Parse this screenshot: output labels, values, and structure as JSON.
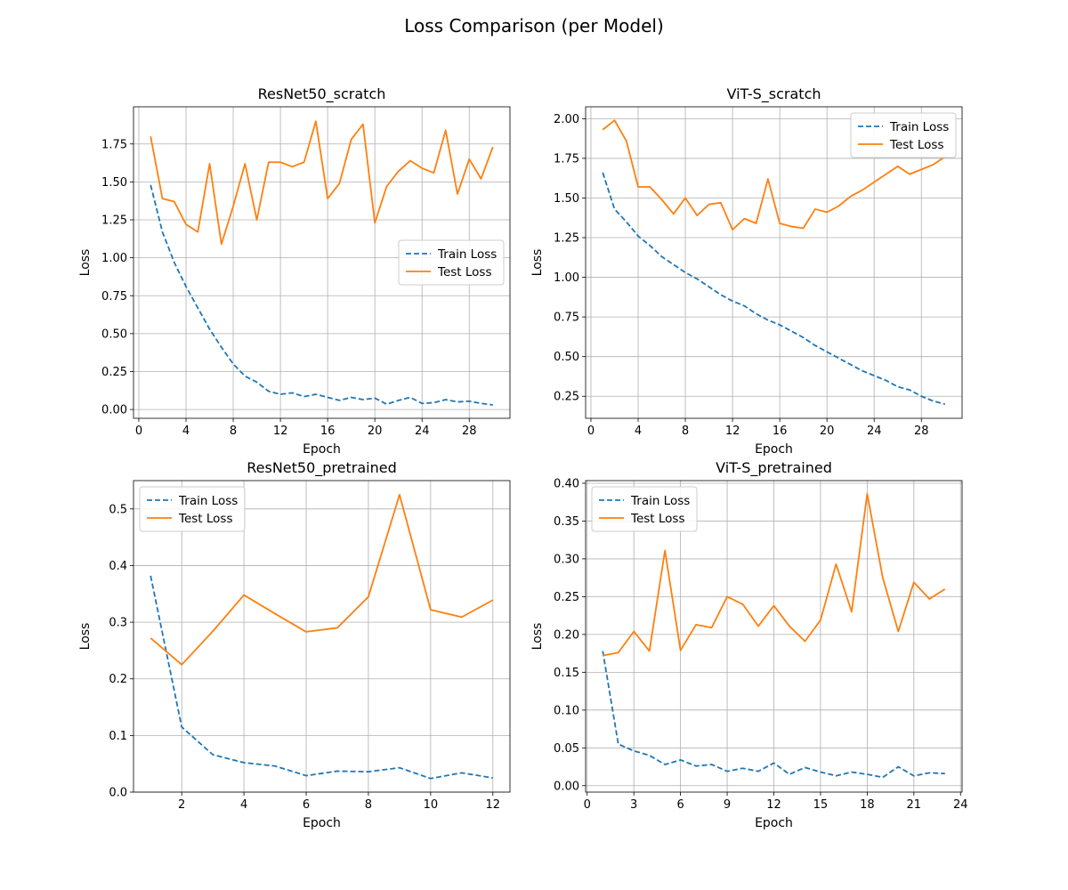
{
  "figure": {
    "title": "Loss Comparison (per Model)"
  },
  "colors": {
    "train": "#1f77b4",
    "test": "#ff7f0e",
    "grid": "#b0b0b0"
  },
  "chart_data": [
    {
      "type": "line",
      "title": "ResNet50_scratch",
      "xlabel": "Epoch",
      "ylabel": "Loss",
      "xlim": [
        -0.45,
        31.45
      ],
      "ylim": [
        -0.058,
        1.995
      ],
      "xticks": [
        0,
        4,
        8,
        12,
        16,
        20,
        24,
        28
      ],
      "yticks": [
        0.0,
        0.25,
        0.5,
        0.75,
        1.0,
        1.25,
        1.5,
        1.75
      ],
      "ytick_labels": [
        "0.00",
        "0.25",
        "0.50",
        "0.75",
        "1.00",
        "1.25",
        "1.50",
        "1.75"
      ],
      "grid": true,
      "legend": "center-right",
      "series": [
        {
          "name": "Train Loss",
          "style": "dashed",
          "x": [
            1,
            2,
            3,
            4,
            5,
            6,
            7,
            8,
            9,
            10,
            11,
            12,
            13,
            14,
            15,
            16,
            17,
            18,
            19,
            20,
            21,
            22,
            23,
            24,
            25,
            26,
            27,
            28,
            29,
            30
          ],
          "values": [
            1.48,
            1.17,
            0.97,
            0.81,
            0.67,
            0.53,
            0.41,
            0.3,
            0.22,
            0.18,
            0.12,
            0.1,
            0.11,
            0.085,
            0.1,
            0.08,
            0.06,
            0.08,
            0.065,
            0.075,
            0.035,
            0.06,
            0.08,
            0.04,
            0.045,
            0.065,
            0.05,
            0.055,
            0.04,
            0.03
          ]
        },
        {
          "name": "Test Loss",
          "style": "solid",
          "x": [
            1,
            2,
            3,
            4,
            5,
            6,
            7,
            8,
            9,
            10,
            11,
            12,
            13,
            14,
            15,
            16,
            17,
            18,
            19,
            20,
            21,
            22,
            23,
            24,
            25,
            26,
            27,
            28,
            29,
            30
          ],
          "values": [
            1.8,
            1.39,
            1.37,
            1.22,
            1.17,
            1.62,
            1.09,
            1.34,
            1.62,
            1.25,
            1.63,
            1.63,
            1.6,
            1.63,
            1.9,
            1.39,
            1.49,
            1.78,
            1.88,
            1.23,
            1.47,
            1.57,
            1.64,
            1.59,
            1.56,
            1.84,
            1.42,
            1.65,
            1.52,
            1.73
          ]
        }
      ]
    },
    {
      "type": "line",
      "title": "ViT-S_scratch",
      "xlabel": "Epoch",
      "ylabel": "Loss",
      "xlim": [
        -0.45,
        31.45
      ],
      "ylim": [
        0.111,
        2.075
      ],
      "xticks": [
        0,
        4,
        8,
        12,
        16,
        20,
        24,
        28
      ],
      "yticks": [
        0.25,
        0.5,
        0.75,
        1.0,
        1.25,
        1.5,
        1.75,
        2.0
      ],
      "ytick_labels": [
        "0.25",
        "0.50",
        "0.75",
        "1.00",
        "1.25",
        "1.50",
        "1.75",
        "2.00"
      ],
      "grid": true,
      "legend": "top-right",
      "series": [
        {
          "name": "Train Loss",
          "style": "dashed",
          "x": [
            1,
            2,
            3,
            4,
            5,
            6,
            7,
            8,
            9,
            10,
            11,
            12,
            13,
            14,
            15,
            16,
            17,
            18,
            19,
            20,
            21,
            22,
            23,
            24,
            25,
            26,
            27,
            28,
            29,
            30
          ],
          "values": [
            1.66,
            1.43,
            1.35,
            1.26,
            1.2,
            1.13,
            1.08,
            1.03,
            0.99,
            0.94,
            0.89,
            0.85,
            0.82,
            0.77,
            0.73,
            0.7,
            0.66,
            0.62,
            0.57,
            0.53,
            0.49,
            0.45,
            0.41,
            0.38,
            0.35,
            0.31,
            0.29,
            0.25,
            0.22,
            0.2
          ]
        },
        {
          "name": "Test Loss",
          "style": "solid",
          "x": [
            1,
            2,
            3,
            4,
            5,
            6,
            7,
            8,
            9,
            10,
            11,
            12,
            13,
            14,
            15,
            16,
            17,
            18,
            19,
            20,
            21,
            22,
            23,
            24,
            25,
            26,
            27,
            28,
            29,
            30
          ],
          "values": [
            1.93,
            1.99,
            1.86,
            1.57,
            1.57,
            1.49,
            1.4,
            1.5,
            1.39,
            1.46,
            1.47,
            1.3,
            1.37,
            1.34,
            1.62,
            1.34,
            1.32,
            1.31,
            1.43,
            1.41,
            1.45,
            1.51,
            1.55,
            1.6,
            1.65,
            1.7,
            1.65,
            1.68,
            1.71,
            1.76
          ]
        }
      ]
    },
    {
      "type": "line",
      "title": "ResNet50_pretrained",
      "xlabel": "Epoch",
      "ylabel": "Loss",
      "xlim": [
        0.45,
        12.55
      ],
      "ylim": [
        0.0,
        0.55
      ],
      "xticks": [
        2,
        4,
        6,
        8,
        10,
        12
      ],
      "yticks": [
        0.0,
        0.1,
        0.2,
        0.3,
        0.4,
        0.5
      ],
      "ytick_labels": [
        "0.0",
        "0.1",
        "0.2",
        "0.3",
        "0.4",
        "0.5"
      ],
      "grid": true,
      "legend": "top-left",
      "series": [
        {
          "name": "Train Loss",
          "style": "dashed",
          "x": [
            1,
            2,
            3,
            4,
            5,
            6,
            7,
            8,
            9,
            10,
            11,
            12
          ],
          "values": [
            0.382,
            0.115,
            0.066,
            0.052,
            0.046,
            0.029,
            0.037,
            0.036,
            0.043,
            0.024,
            0.034,
            0.025
          ]
        },
        {
          "name": "Test Loss",
          "style": "solid",
          "x": [
            1,
            2,
            3,
            4,
            5,
            6,
            7,
            8,
            9,
            10,
            11,
            12
          ],
          "values": [
            0.272,
            0.225,
            0.284,
            0.348,
            0.315,
            0.283,
            0.29,
            0.345,
            0.525,
            0.322,
            0.309,
            0.339
          ]
        }
      ]
    },
    {
      "type": "line",
      "title": "ViT-S_pretrained",
      "xlabel": "Epoch",
      "ylabel": "Loss",
      "xlim": [
        -0.1,
        24.1
      ],
      "ylim": [
        -0.0085,
        0.4035
      ],
      "xticks": [
        0,
        3,
        6,
        9,
        12,
        15,
        18,
        21,
        24
      ],
      "yticks": [
        0.0,
        0.05,
        0.1,
        0.15,
        0.2,
        0.25,
        0.3,
        0.35,
        0.4
      ],
      "ytick_labels": [
        "0.00",
        "0.05",
        "0.10",
        "0.15",
        "0.20",
        "0.25",
        "0.30",
        "0.35",
        "0.40"
      ],
      "grid": true,
      "legend": "top-left",
      "series": [
        {
          "name": "Train Loss",
          "style": "dashed",
          "x": [
            1,
            2,
            3,
            4,
            5,
            6,
            7,
            8,
            9,
            10,
            11,
            12,
            13,
            14,
            15,
            16,
            17,
            18,
            19,
            20,
            21,
            22,
            23
          ],
          "values": [
            0.178,
            0.055,
            0.046,
            0.04,
            0.028,
            0.034,
            0.026,
            0.028,
            0.019,
            0.023,
            0.019,
            0.03,
            0.015,
            0.024,
            0.018,
            0.013,
            0.018,
            0.015,
            0.011,
            0.025,
            0.013,
            0.017,
            0.016
          ]
        },
        {
          "name": "Test Loss",
          "style": "solid",
          "x": [
            1,
            2,
            3,
            4,
            5,
            6,
            7,
            8,
            9,
            10,
            11,
            12,
            13,
            14,
            15,
            16,
            17,
            18,
            19,
            20,
            21,
            22,
            23
          ],
          "values": [
            0.172,
            0.176,
            0.204,
            0.178,
            0.311,
            0.179,
            0.213,
            0.209,
            0.25,
            0.24,
            0.211,
            0.238,
            0.211,
            0.191,
            0.219,
            0.293,
            0.23,
            0.386,
            0.275,
            0.204,
            0.269,
            0.247,
            0.26
          ]
        }
      ]
    }
  ]
}
